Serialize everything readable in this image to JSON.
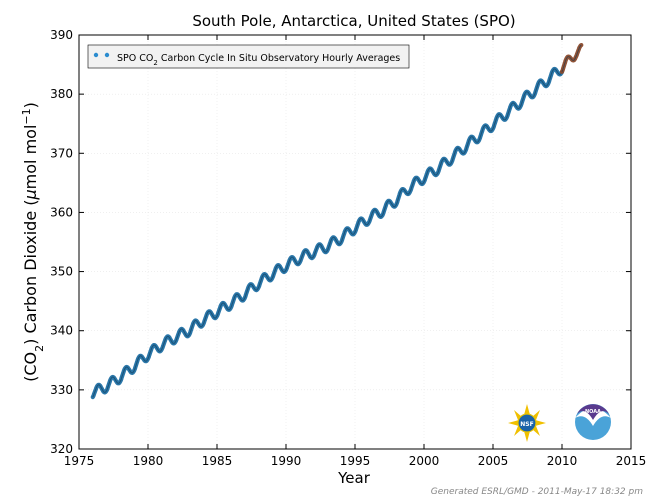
{
  "chart_data": {
    "type": "scatter",
    "title": "South Pole, Antarctica, United States (SPO)",
    "xlabel": "Year",
    "ylabel_main": "(CO",
    "ylabel_sub": "2",
    "ylabel_rest": ") Carbon Dioxide (",
    "ylabel_mu": "μ",
    "ylabel_unit": "mol mol",
    "ylabel_sup": "−1",
    "ylabel_close": ")",
    "xlim": [
      1975,
      2015
    ],
    "ylim": [
      320,
      390
    ],
    "xticks": [
      "1975",
      "1980",
      "1985",
      "1990",
      "1995",
      "2000",
      "2005",
      "2010",
      "2015"
    ],
    "yticks": [
      "320",
      "330",
      "340",
      "350",
      "360",
      "370",
      "380",
      "390"
    ],
    "grid": true,
    "legend": {
      "position": "top-left",
      "label_pre": "SPO CO",
      "label_sub": "2",
      "label_post": " Carbon Cycle In Situ Observatory Hourly Averages"
    },
    "series": [
      {
        "name": "SPO CO2 Carbon Cycle In Situ Observatory Hourly Averages",
        "color": "#1f6fa3",
        "trend": [
          [
            1976.0,
            329.5
          ],
          [
            1977.0,
            330.6
          ],
          [
            1978.0,
            332.2
          ],
          [
            1979.0,
            334.0
          ],
          [
            1980.0,
            336.0
          ],
          [
            1981.0,
            337.6
          ],
          [
            1982.0,
            338.9
          ],
          [
            1983.0,
            340.1
          ],
          [
            1984.0,
            341.8
          ],
          [
            1985.0,
            343.2
          ],
          [
            1986.0,
            344.6
          ],
          [
            1987.0,
            346.2
          ],
          [
            1988.0,
            348.0
          ],
          [
            1989.0,
            349.6
          ],
          [
            1990.0,
            351.0
          ],
          [
            1991.0,
            352.3
          ],
          [
            1992.0,
            353.3
          ],
          [
            1993.0,
            354.3
          ],
          [
            1994.0,
            355.7
          ],
          [
            1995.0,
            357.4
          ],
          [
            1996.0,
            359.0
          ],
          [
            1997.0,
            360.3
          ],
          [
            1998.0,
            362.1
          ],
          [
            1999.0,
            364.3
          ],
          [
            2000.0,
            365.9
          ],
          [
            2001.0,
            367.4
          ],
          [
            2002.0,
            369.2
          ],
          [
            2003.0,
            371.1
          ],
          [
            2004.0,
            373.0
          ],
          [
            2005.0,
            374.9
          ],
          [
            2006.0,
            376.8
          ],
          [
            2007.0,
            378.7
          ],
          [
            2008.0,
            380.6
          ],
          [
            2009.0,
            382.5
          ],
          [
            2010.0,
            384.5
          ]
        ],
        "seasonal_amplitude": 0.9
      },
      {
        "name": "",
        "color": "#8a4a2c",
        "trend": [
          [
            2010.0,
            384.5
          ],
          [
            2010.5,
            385.6
          ],
          [
            2011.0,
            387.0
          ],
          [
            2011.4,
            387.4
          ]
        ],
        "seasonal_amplitude": 0.9
      }
    ]
  },
  "logos": {
    "nsf_label": "NSF",
    "noaa_label": "NOAA"
  },
  "footer": "Generated ESRL/GMD - 2011-May-17 18:32 pm"
}
